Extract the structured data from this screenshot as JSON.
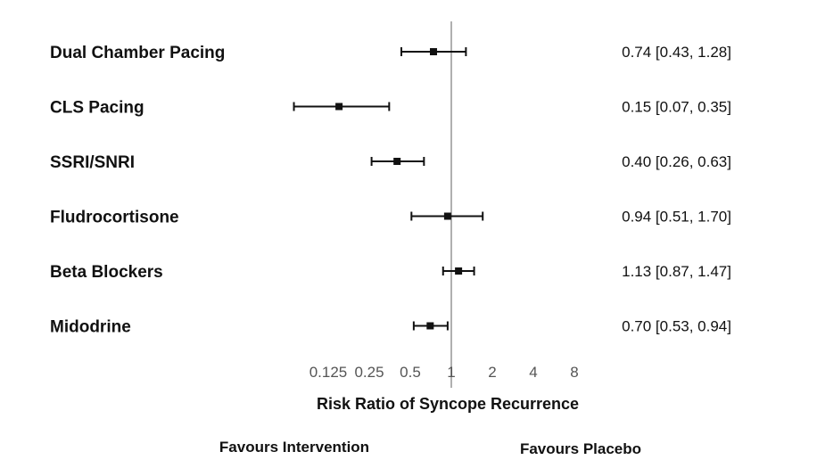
{
  "chart_data": {
    "type": "forest",
    "xlabel": "Risk Ratio of Syncope Recurrence",
    "x_scale": "log2",
    "x_ticks": [
      0.125,
      0.25,
      0.5,
      1,
      2,
      4,
      8
    ],
    "x_tick_labels": [
      "0.125",
      "0.25",
      "0.5",
      "1",
      "2",
      "4",
      "8"
    ],
    "reference_line": 1,
    "rows": [
      {
        "label": "Dual Chamber Pacing",
        "rr": 0.74,
        "lo": 0.43,
        "hi": 1.28,
        "ci_text": "0.74 [0.43, 1.28]"
      },
      {
        "label": "CLS Pacing",
        "rr": 0.15,
        "lo": 0.07,
        "hi": 0.35,
        "ci_text": "0.15 [0.07, 0.35]"
      },
      {
        "label": "SSRI/SNRI",
        "rr": 0.4,
        "lo": 0.26,
        "hi": 0.63,
        "ci_text": "0.40 [0.26, 0.63]"
      },
      {
        "label": "Fludrocortisone",
        "rr": 0.94,
        "lo": 0.51,
        "hi": 1.7,
        "ci_text": "0.94 [0.51, 1.70]"
      },
      {
        "label": "Beta Blockers",
        "rr": 1.13,
        "lo": 0.87,
        "hi": 1.47,
        "ci_text": "1.13 [0.87, 1.47]"
      },
      {
        "label": "Midodrine",
        "rr": 0.7,
        "lo": 0.53,
        "hi": 0.94,
        "ci_text": "0.70 [0.53, 0.94]"
      }
    ],
    "favours_left": "Favours Intervention",
    "favours_right": "Favours Placebo",
    "colors": {
      "marker": "#111111",
      "reference_line": "#b0b0b0",
      "tick_text": "#555555"
    }
  }
}
